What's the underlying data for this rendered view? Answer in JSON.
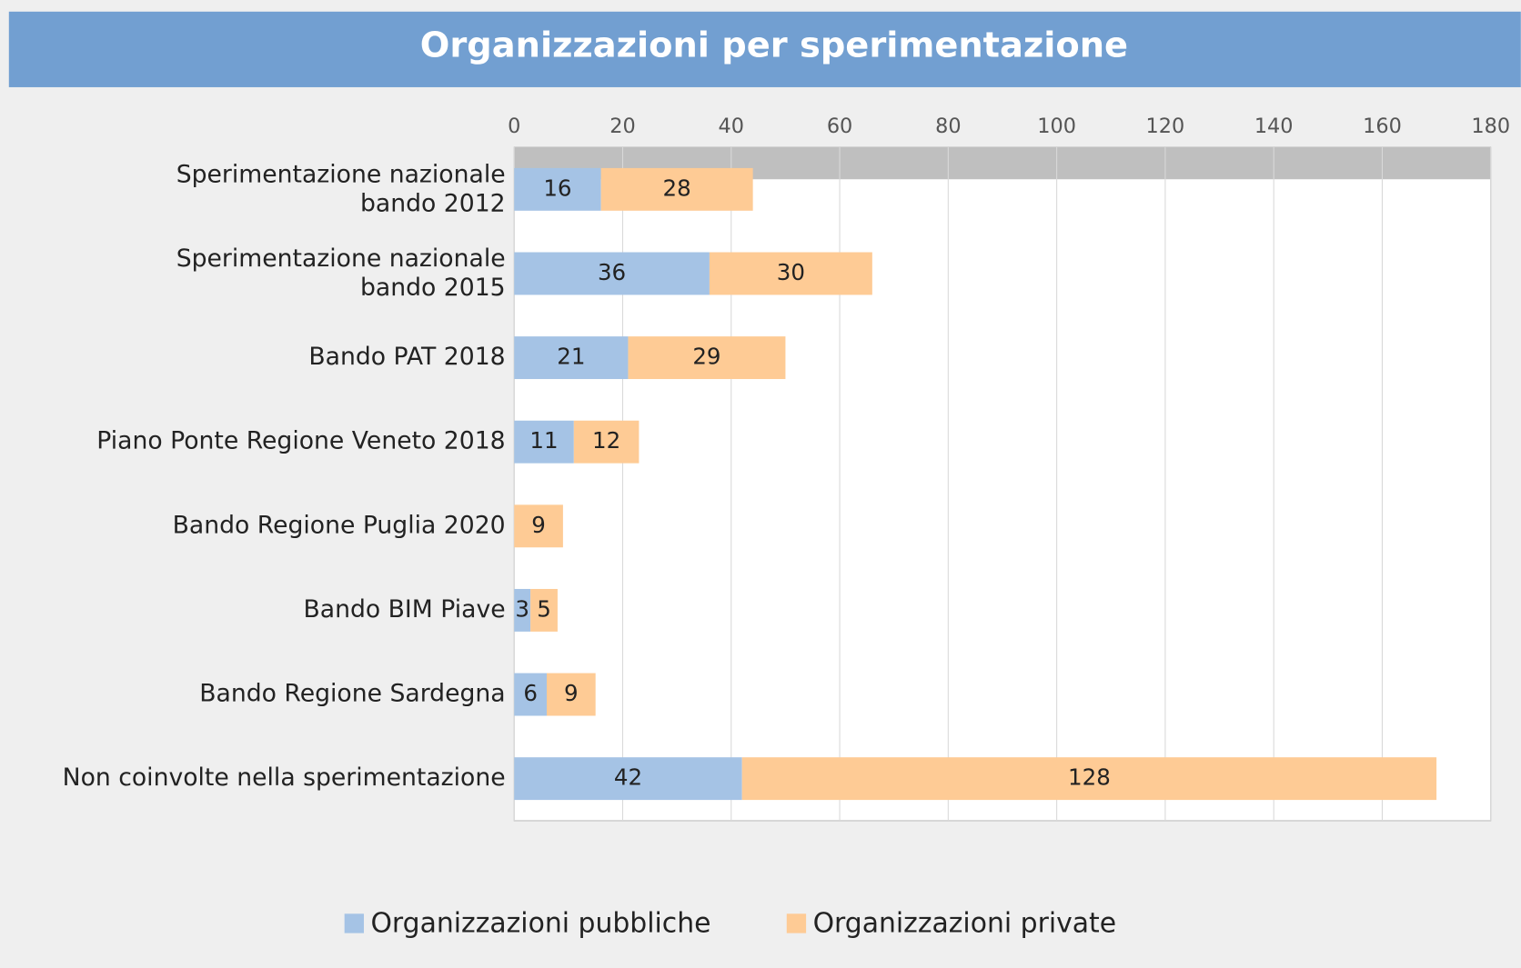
{
  "chart_data": {
    "type": "stacked_barh",
    "title": "Organizzazioni per sperimentazione",
    "categories": [
      "Sperimentazione nazionale\nbando 2012",
      "Sperimentazione nazionale\nbando 2015",
      "Bando PAT  2018",
      "Piano Ponte Regione Veneto 2018",
      "Bando Regione Puglia 2020",
      "Bando BIM Piave",
      "Bando Regione Sardegna",
      "Non coinvolte nella sperimentazione"
    ],
    "series": [
      {
        "name": "Organizzazioni pubbliche",
        "color": "#a5c3e5",
        "values": [
          16,
          36,
          21,
          11,
          null,
          3,
          6,
          42
        ]
      },
      {
        "name": "Organizzazioni private",
        "color": "#fecb95",
        "values": [
          28,
          30,
          29,
          12,
          9,
          5,
          9,
          128
        ]
      }
    ],
    "xlim": [
      0,
      180
    ],
    "xticks": [
      0,
      20,
      40,
      60,
      80,
      100,
      120,
      140,
      160,
      180
    ],
    "grid": true,
    "legend": "bottom"
  }
}
